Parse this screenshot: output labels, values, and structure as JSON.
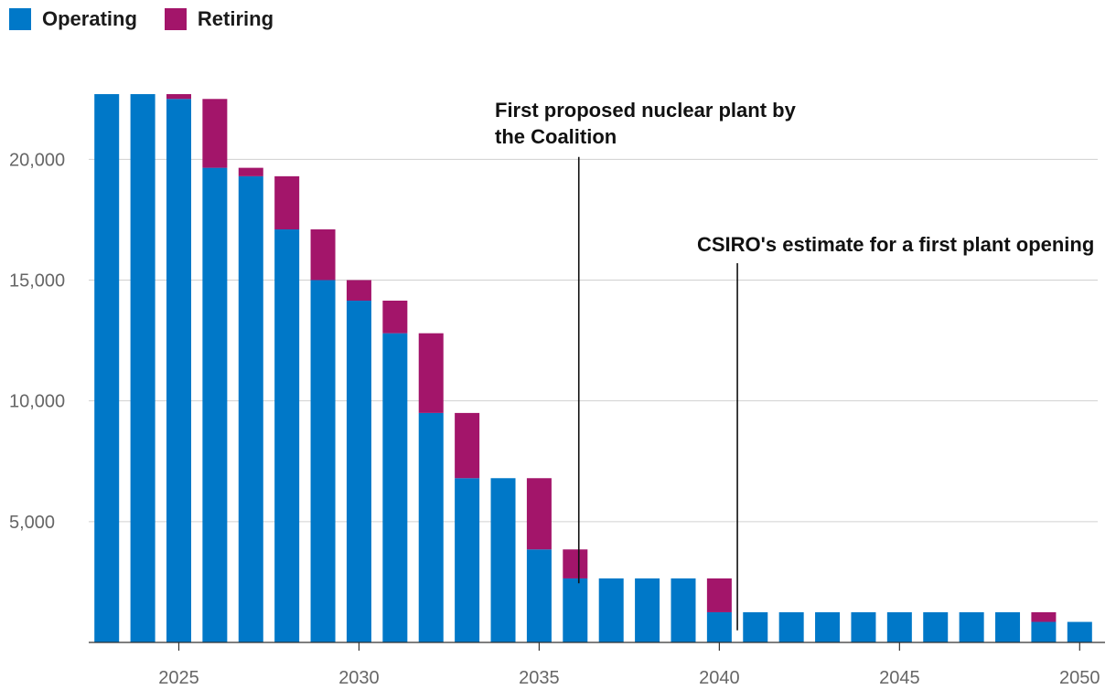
{
  "legend": {
    "operating": {
      "label": "Operating",
      "color": "#0078c8"
    },
    "retiring": {
      "label": "Retiring",
      "color": "#a3156a"
    }
  },
  "chart_data": {
    "type": "bar",
    "stacked": true,
    "title": "",
    "xlabel": "",
    "ylabel": "",
    "ylim": [
      0,
      22700
    ],
    "xlim": [
      2022.5,
      2050.5
    ],
    "y_ticks": [
      {
        "value": 5000,
        "label": "5,000"
      },
      {
        "value": 10000,
        "label": "10,000"
      },
      {
        "value": 15000,
        "label": "15,000"
      },
      {
        "value": 20000,
        "label": "20,000"
      }
    ],
    "x_ticks": [
      {
        "value": 2025,
        "label": "2025"
      },
      {
        "value": 2030,
        "label": "2030"
      },
      {
        "value": 2035,
        "label": "2035"
      },
      {
        "value": 2040,
        "label": "2040"
      },
      {
        "value": 2045,
        "label": "2045"
      },
      {
        "value": 2050,
        "label": "2050"
      }
    ],
    "categories": [
      2023,
      2024,
      2025,
      2026,
      2027,
      2028,
      2029,
      2030,
      2031,
      2032,
      2033,
      2034,
      2035,
      2036,
      2037,
      2038,
      2039,
      2040,
      2041,
      2042,
      2043,
      2044,
      2045,
      2046,
      2047,
      2048,
      2049,
      2050
    ],
    "series": [
      {
        "name": "Operating",
        "color": "#0078c8",
        "values": [
          22700,
          22700,
          22500,
          19650,
          19300,
          17100,
          15000,
          14150,
          12800,
          9500,
          6800,
          6800,
          3850,
          2650,
          2650,
          2650,
          2650,
          1250,
          1250,
          1250,
          1250,
          1250,
          1250,
          1250,
          1250,
          1250,
          850,
          850
        ]
      },
      {
        "name": "Retiring",
        "color": "#a3156a",
        "values": [
          0,
          0,
          200,
          2850,
          350,
          2200,
          2100,
          850,
          1350,
          3300,
          2700,
          0,
          2950,
          1200,
          0,
          0,
          0,
          1400,
          0,
          0,
          0,
          0,
          0,
          0,
          0,
          0,
          400,
          0
        ]
      }
    ],
    "annotations": [
      {
        "lines": [
          "First proposed nuclear plant by",
          "the Coalition"
        ],
        "x": 2036.1,
        "y_top": 20100,
        "y_bottom": 2450
      },
      {
        "lines": [
          "CSIRO's estimate for a first plant opening"
        ],
        "x": 2040.5,
        "y_top": 15700,
        "y_bottom": 500
      }
    ]
  }
}
